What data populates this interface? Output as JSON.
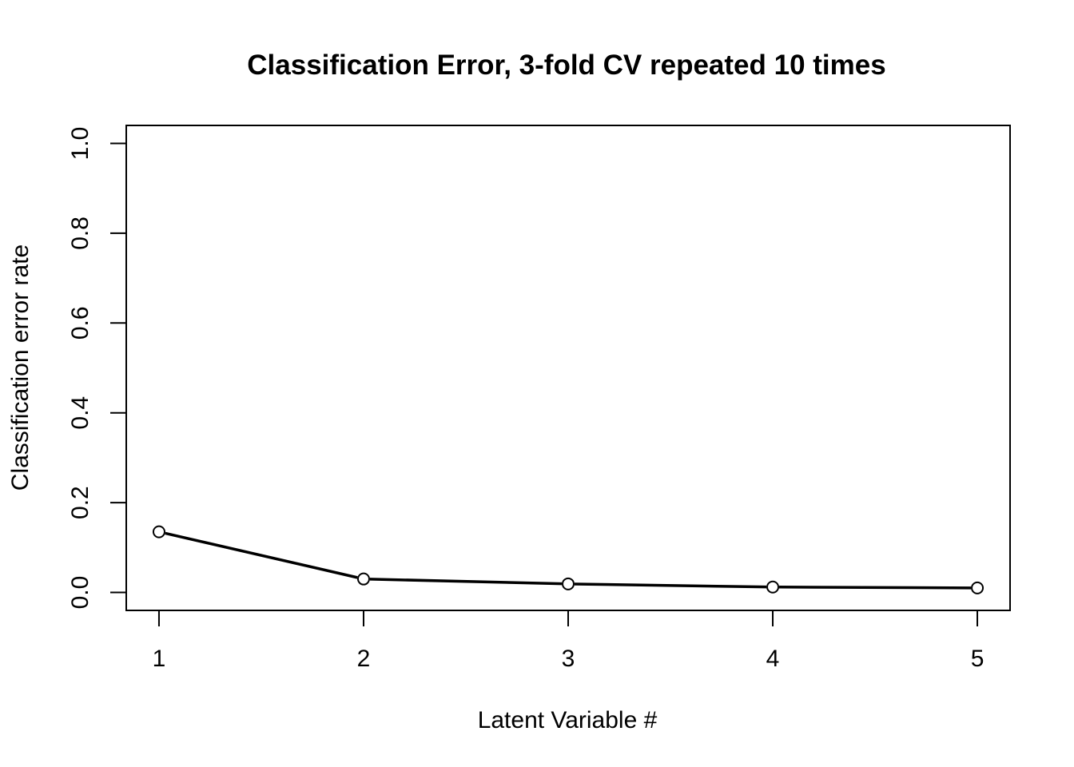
{
  "chart_data": {
    "type": "line",
    "title": "Classification Error, 3-fold CV repeated 10 times",
    "xlabel": "Latent Variable #",
    "ylabel": "Classification error rate",
    "x": [
      1,
      2,
      3,
      4,
      5
    ],
    "series": [
      {
        "values": [
          0.135,
          0.03,
          0.019,
          0.012,
          0.01
        ],
        "color": "#000000",
        "marker": "open-circle"
      }
    ],
    "x_ticks": [
      "1",
      "2",
      "3",
      "4",
      "5"
    ],
    "y_ticks": [
      "0.0",
      "0.2",
      "0.4",
      "0.6",
      "0.8",
      "1.0"
    ],
    "xlim": [
      0.84,
      5.16
    ],
    "ylim": [
      -0.04,
      1.04
    ],
    "grid": false,
    "legend": "none"
  }
}
